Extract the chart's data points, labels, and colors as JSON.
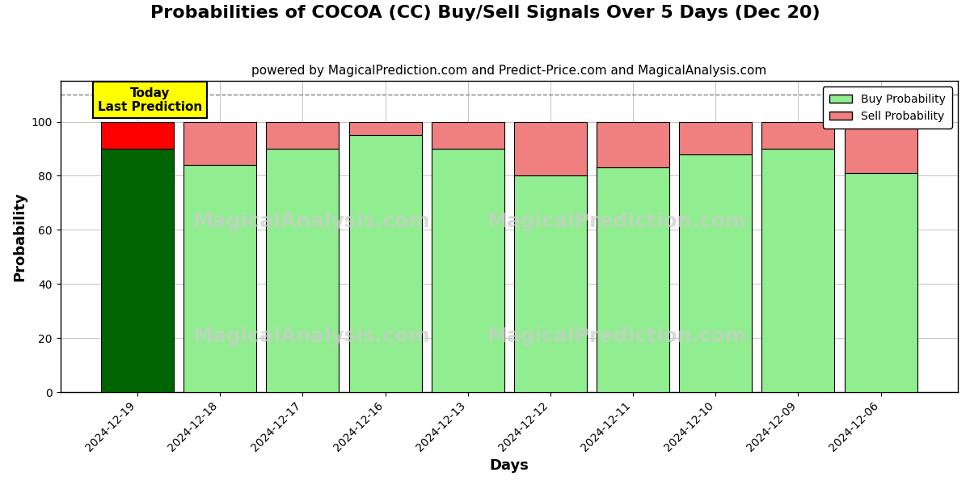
{
  "title": "Probabilities of COCOA (CC) Buy/Sell Signals Over 5 Days (Dec 20)",
  "subtitle": "powered by MagicalPrediction.com and Predict-Price.com and MagicalAnalysis.com",
  "xlabel": "Days",
  "ylabel": "Probability",
  "dates": [
    "2024-12-19",
    "2024-12-18",
    "2024-12-17",
    "2024-12-16",
    "2024-12-13",
    "2024-12-12",
    "2024-12-11",
    "2024-12-10",
    "2024-12-09",
    "2024-12-06"
  ],
  "buy_values": [
    90,
    84,
    90,
    95,
    90,
    80,
    83,
    88,
    90,
    81
  ],
  "sell_values": [
    10,
    16,
    10,
    5,
    10,
    20,
    17,
    12,
    10,
    19
  ],
  "today_bar_buy_color": "#006400",
  "today_bar_sell_color": "#FF0000",
  "other_bar_buy_color": "#90EE90",
  "other_bar_sell_color": "#F08080",
  "today_annotation_text": "Today\nLast Prediction",
  "today_annotation_bg": "#FFFF00",
  "today_annotation_fontsize": 11,
  "legend_buy_label": "Buy Probability",
  "legend_sell_label": "Sell Probability",
  "ylim": [
    0,
    115
  ],
  "yticks": [
    0,
    20,
    40,
    60,
    80,
    100
  ],
  "dashed_line_y": 110,
  "watermark1": "MagicalAnalysis.com",
  "watermark2": "MagicalPrediction.com",
  "title_fontsize": 16,
  "subtitle_fontsize": 11,
  "axis_label_fontsize": 13,
  "tick_fontsize": 10,
  "bar_edge_color": "#000000",
  "bar_edge_width": 0.8,
  "grid_color": "#BBBBBB",
  "background_color": "#FFFFFF",
  "bar_width": 0.88
}
